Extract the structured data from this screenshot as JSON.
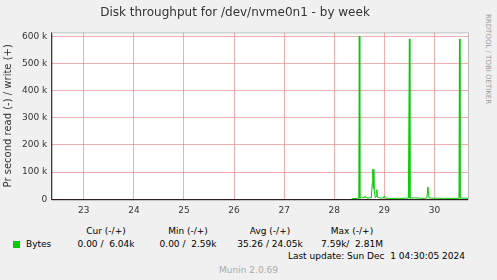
{
  "chart_data": {
    "type": "line",
    "title": "Disk throughput for /dev/nvme0n1 - by week",
    "y_label": "Pr second read (-) / write (+)",
    "x": [
      28.35,
      28.45,
      28.49,
      28.5,
      28.51,
      28.55,
      28.6,
      28.62,
      28.65,
      28.74,
      28.76,
      28.77,
      28.78,
      28.79,
      28.8,
      28.82,
      28.84,
      28.85,
      28.86,
      28.9,
      28.98,
      29.0,
      29.02,
      29.1,
      29.3,
      29.48,
      29.49,
      29.5,
      29.51,
      29.6,
      29.8,
      29.85,
      29.87,
      29.89,
      29.95,
      30.2,
      30.45,
      30.49,
      30.5,
      30.51,
      30.6,
      30.67
    ],
    "series": [
      {
        "name": "Bytes",
        "color": "#00cc00",
        "values": [
          2000,
          3000,
          4000,
          600000,
          4000,
          8000,
          5000,
          12000,
          4000,
          6000,
          60000,
          110000,
          40000,
          110000,
          30000,
          6000,
          10000,
          35000,
          8000,
          5000,
          4000,
          12000,
          4000,
          3000,
          3000,
          4000,
          4000,
          590000,
          4000,
          5000,
          3000,
          5000,
          45000,
          5000,
          4000,
          3000,
          3000,
          4000,
          590000,
          4000,
          4000,
          3000
        ]
      }
    ],
    "xlim": [
      22.35,
      30.67
    ],
    "xticks": [
      23,
      24,
      25,
      26,
      27,
      28,
      29,
      30
    ],
    "ylim": [
      0,
      614000
    ],
    "yticks": [
      0,
      {
        "value": 100000,
        "label": "100 k"
      },
      {
        "value": 200000,
        "label": "200 k"
      },
      {
        "value": 300000,
        "label": "300 k"
      },
      {
        "value": 400000,
        "label": "400 k"
      },
      {
        "value": 500000,
        "label": "500 k"
      },
      {
        "value": 600000,
        "label": "600 k"
      }
    ],
    "grid": true
  },
  "side_text": "RRDTOOL / TOBI OETIKER",
  "legend_table": {
    "headers": [
      "Cur (-/+)",
      "Min (-/+)",
      "Avg (-/+)",
      "Max (-/+)"
    ],
    "rows": [
      {
        "name": "Bytes",
        "color": "#00cc00",
        "cells": [
          "0.00 /  6.04k",
          "0.00 /  2.59k",
          "35.26 / 24.05k",
          "7.59k/  2.81M"
        ]
      }
    ]
  },
  "last_update": "Last update: Sun Dec  1 04:30:05 2024",
  "version": "Munin 2.0.69"
}
